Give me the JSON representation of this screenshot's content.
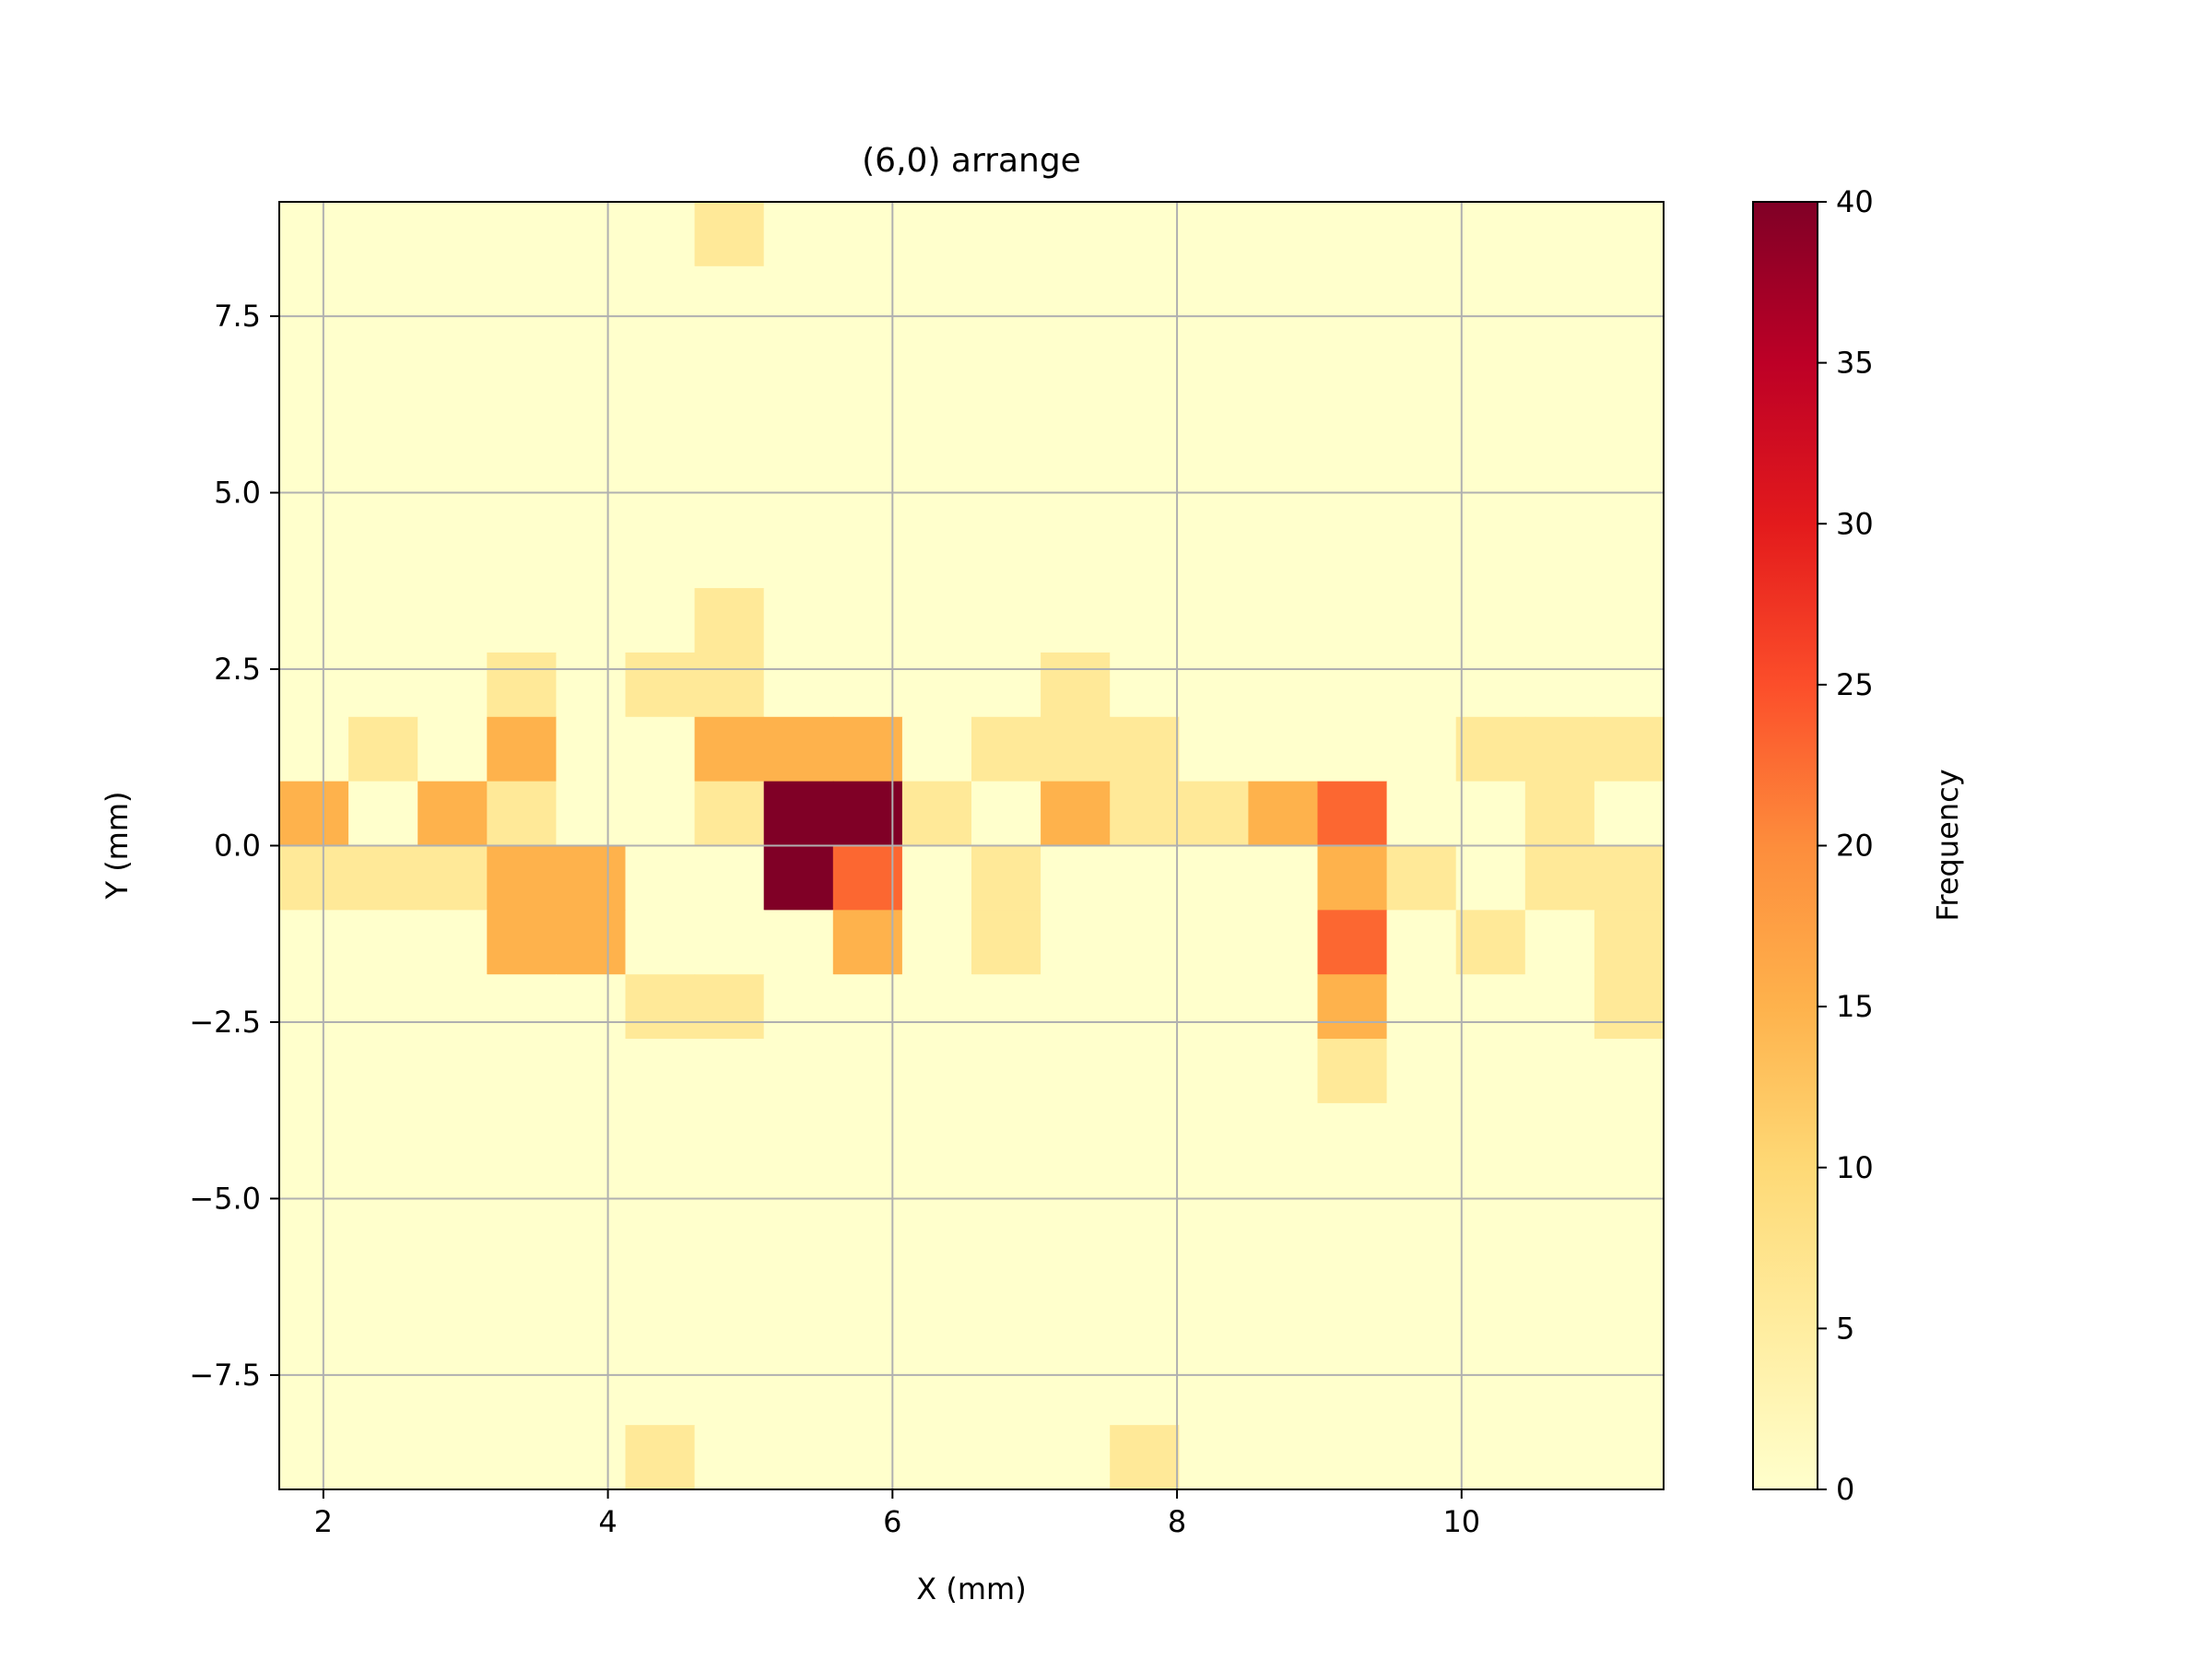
{
  "chart_data": {
    "type": "heatmap",
    "title": "(6,0) arrange",
    "xlabel": "X (mm)",
    "ylabel": "Y (mm)",
    "colorbar_label": "Frequency",
    "xlim": [
      1.69,
      11.42
    ],
    "ylim": [
      -9.12,
      9.12
    ],
    "x_bins": 20,
    "y_bins": 20,
    "xticks": [
      2,
      4,
      6,
      8,
      10
    ],
    "xtick_labels": [
      "2",
      "4",
      "6",
      "8",
      "10"
    ],
    "yticks": [
      -7.5,
      -5.0,
      -2.5,
      0.0,
      2.5,
      5.0,
      7.5
    ],
    "ytick_labels": [
      "−7.5",
      "−5.0",
      "−2.5",
      "0.0",
      "2.5",
      "5.0",
      "7.5"
    ],
    "colorbar_ticks": [
      0,
      5,
      10,
      15,
      20,
      25,
      30,
      35,
      40
    ],
    "colorbar_tick_labels": [
      "0",
      "5",
      "10",
      "15",
      "20",
      "25",
      "30",
      "35",
      "40"
    ],
    "vmin": 0,
    "vmax": 40,
    "colormap": "YlOrRd",
    "grid": true,
    "cells_rows_top_to_bottom": [
      [
        0,
        0,
        0,
        0,
        0,
        0,
        6,
        0,
        0,
        0,
        0,
        0,
        0,
        0,
        0,
        0,
        0,
        0,
        0,
        0
      ],
      [
        0,
        0,
        0,
        0,
        0,
        0,
        0,
        0,
        0,
        0,
        0,
        0,
        0,
        0,
        0,
        0,
        0,
        0,
        0,
        0
      ],
      [
        0,
        0,
        0,
        0,
        0,
        0,
        0,
        0,
        0,
        0,
        0,
        0,
        0,
        0,
        0,
        0,
        0,
        0,
        0,
        0
      ],
      [
        0,
        0,
        0,
        0,
        0,
        0,
        0,
        0,
        0,
        0,
        0,
        0,
        0,
        0,
        0,
        0,
        0,
        0,
        0,
        0
      ],
      [
        0,
        0,
        0,
        0,
        0,
        0,
        0,
        0,
        0,
        0,
        0,
        0,
        0,
        0,
        0,
        0,
        0,
        0,
        0,
        0
      ],
      [
        0,
        0,
        0,
        0,
        0,
        0,
        0,
        0,
        0,
        0,
        0,
        0,
        0,
        0,
        0,
        0,
        0,
        0,
        0,
        0
      ],
      [
        0,
        0,
        0,
        0,
        0,
        0,
        6,
        0,
        0,
        0,
        0,
        0,
        0,
        0,
        0,
        0,
        0,
        0,
        0,
        0
      ],
      [
        0,
        0,
        0,
        6,
        0,
        6,
        6,
        0,
        0,
        0,
        0,
        6,
        0,
        0,
        0,
        0,
        0,
        0,
        0,
        0
      ],
      [
        0,
        6,
        0,
        15,
        0,
        0,
        15,
        15,
        15,
        0,
        6,
        6,
        6,
        0,
        0,
        0,
        0,
        6,
        6,
        6
      ],
      [
        15,
        0,
        15,
        6,
        0,
        0,
        6,
        40,
        40,
        6,
        0,
        15,
        6,
        6,
        15,
        23,
        0,
        0,
        6,
        0
      ],
      [
        6,
        6,
        6,
        15,
        15,
        0,
        0,
        40,
        23,
        0,
        6,
        0,
        0,
        0,
        0,
        15,
        6,
        0,
        6,
        6
      ],
      [
        0,
        0,
        0,
        15,
        15,
        0,
        0,
        0,
        15,
        0,
        6,
        0,
        0,
        0,
        0,
        23,
        0,
        6,
        0,
        6
      ],
      [
        0,
        0,
        0,
        0,
        0,
        6,
        6,
        0,
        0,
        0,
        0,
        0,
        0,
        0,
        0,
        15,
        0,
        0,
        0,
        6
      ],
      [
        0,
        0,
        0,
        0,
        0,
        0,
        0,
        0,
        0,
        0,
        0,
        0,
        0,
        0,
        0,
        6,
        0,
        0,
        0,
        0
      ],
      [
        0,
        0,
        0,
        0,
        0,
        0,
        0,
        0,
        0,
        0,
        0,
        0,
        0,
        0,
        0,
        0,
        0,
        0,
        0,
        0
      ],
      [
        0,
        0,
        0,
        0,
        0,
        0,
        0,
        0,
        0,
        0,
        0,
        0,
        0,
        0,
        0,
        0,
        0,
        0,
        0,
        0
      ],
      [
        0,
        0,
        0,
        0,
        0,
        0,
        0,
        0,
        0,
        0,
        0,
        0,
        0,
        0,
        0,
        0,
        0,
        0,
        0,
        0
      ],
      [
        0,
        0,
        0,
        0,
        0,
        0,
        0,
        0,
        0,
        0,
        0,
        0,
        0,
        0,
        0,
        0,
        0,
        0,
        0,
        0
      ],
      [
        0,
        0,
        0,
        0,
        0,
        0,
        0,
        0,
        0,
        0,
        0,
        0,
        0,
        0,
        0,
        0,
        0,
        0,
        0,
        0
      ],
      [
        0,
        0,
        0,
        0,
        0,
        6,
        0,
        0,
        0,
        0,
        0,
        0,
        6,
        0,
        0,
        0,
        0,
        0,
        0,
        0
      ]
    ]
  }
}
